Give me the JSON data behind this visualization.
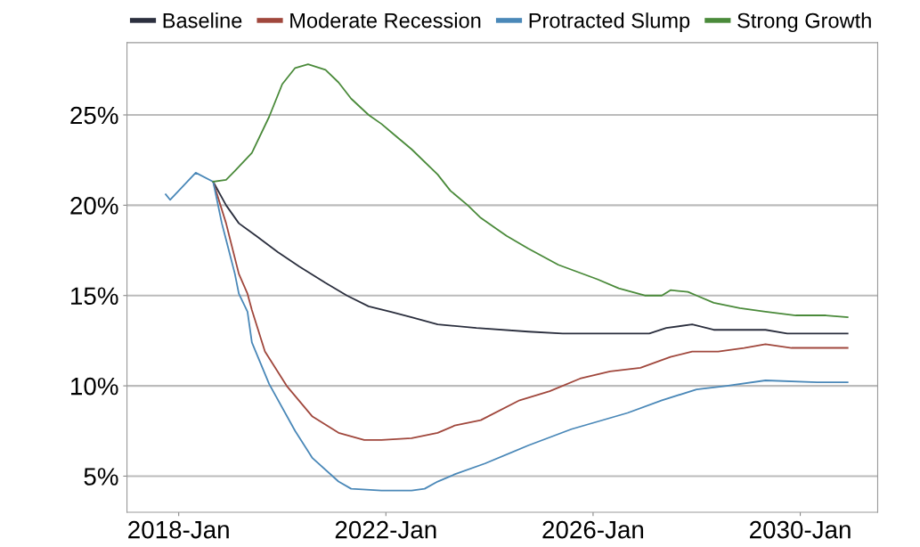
{
  "chart_data": {
    "type": "line",
    "xlim": [
      "2017-01",
      "2031-07"
    ],
    "xticks": [
      {
        "value": "2018-01",
        "label": "2018-Jan"
      },
      {
        "value": "2022-01",
        "label": "2022-Jan"
      },
      {
        "value": "2026-01",
        "label": "2026-Jan"
      },
      {
        "value": "2030-01",
        "label": "2030-Jan"
      }
    ],
    "ylim": [
      3,
      29
    ],
    "yticks": [
      {
        "value": 5,
        "label": "5%"
      },
      {
        "value": 10,
        "label": "10%"
      },
      {
        "value": 15,
        "label": "15%"
      },
      {
        "value": 20,
        "label": "20%"
      },
      {
        "value": 25,
        "label": "25%"
      }
    ],
    "grid": "y",
    "legend": "top",
    "marker": "none",
    "line_style": "solid",
    "series": [
      {
        "name": "Baseline",
        "color": "#2b2f3e",
        "x": [
          "2018-09",
          "2018-12",
          "2019-03",
          "2019-07",
          "2019-12",
          "2020-05",
          "2020-11",
          "2021-04",
          "2021-09",
          "2022-02",
          "2022-07",
          "2023-01",
          "2023-10",
          "2024-10",
          "2025-06",
          "2026-08",
          "2027-02",
          "2027-06",
          "2027-12",
          "2028-05",
          "2029-05",
          "2029-10",
          "2030-12"
        ],
        "values": [
          21.3,
          20.0,
          19.0,
          18.3,
          17.4,
          16.6,
          15.7,
          15.0,
          14.4,
          14.1,
          13.8,
          13.4,
          13.2,
          13.0,
          12.9,
          12.9,
          12.9,
          13.2,
          13.4,
          13.1,
          13.1,
          12.9,
          12.9
        ]
      },
      {
        "name": "Moderate Recession",
        "color": "#a0473c",
        "x": [
          "2018-09",
          "2018-12",
          "2019-03",
          "2019-05",
          "2019-06",
          "2019-09",
          "2020-02",
          "2020-08",
          "2021-02",
          "2021-08",
          "2021-12",
          "2022-07",
          "2023-01",
          "2023-05",
          "2023-11",
          "2024-08",
          "2025-03",
          "2025-10",
          "2026-05",
          "2026-12",
          "2027-07",
          "2027-12",
          "2028-06",
          "2028-12",
          "2029-05",
          "2029-11",
          "2030-12"
        ],
        "values": [
          21.3,
          19.0,
          16.2,
          15.1,
          14.2,
          11.9,
          10.0,
          8.3,
          7.4,
          7.0,
          7.0,
          7.1,
          7.4,
          7.8,
          8.1,
          9.2,
          9.7,
          10.4,
          10.8,
          11.0,
          11.6,
          11.9,
          11.9,
          12.1,
          12.3,
          12.1,
          12.1
        ]
      },
      {
        "name": "Protracted Slump",
        "color": "#4a88b8",
        "x": [
          "2017-10",
          "2017-11",
          "2018-05",
          "2018-09",
          "2018-11",
          "2019-02",
          "2019-03",
          "2019-05",
          "2019-06",
          "2019-10",
          "2020-04",
          "2020-08",
          "2021-02",
          "2021-05",
          "2021-12",
          "2022-07",
          "2022-10",
          "2023-01",
          "2023-05",
          "2023-12",
          "2024-10",
          "2025-08",
          "2026-09",
          "2027-05",
          "2028-01",
          "2028-08",
          "2029-05",
          "2030-05",
          "2030-12"
        ],
        "values": [
          20.6,
          20.3,
          21.8,
          21.3,
          19.0,
          16.2,
          15.1,
          14.1,
          12.4,
          10.1,
          7.5,
          6.0,
          4.7,
          4.3,
          4.2,
          4.2,
          4.3,
          4.7,
          5.1,
          5.7,
          6.7,
          7.6,
          8.5,
          9.2,
          9.8,
          10.0,
          10.3,
          10.2,
          10.2
        ]
      },
      {
        "name": "Strong Growth",
        "color": "#4a8a3a",
        "x": [
          "2018-09",
          "2018-12",
          "2019-02",
          "2019-06",
          "2019-10",
          "2020-01",
          "2020-04",
          "2020-07",
          "2020-11",
          "2021-02",
          "2021-05",
          "2021-09",
          "2021-12",
          "2022-03",
          "2022-07",
          "2023-01",
          "2023-04",
          "2023-08",
          "2023-11",
          "2024-05",
          "2024-10",
          "2025-05",
          "2026-02",
          "2026-07",
          "2027-01",
          "2027-05",
          "2027-07",
          "2027-11",
          "2028-01",
          "2028-05",
          "2028-11",
          "2029-05",
          "2029-12",
          "2030-07",
          "2030-12"
        ],
        "values": [
          21.3,
          21.4,
          21.9,
          22.9,
          24.9,
          26.7,
          27.6,
          27.8,
          27.5,
          26.8,
          25.9,
          25.0,
          24.5,
          23.9,
          23.1,
          21.7,
          20.8,
          20.0,
          19.3,
          18.3,
          17.6,
          16.7,
          15.9,
          15.4,
          15.0,
          15.0,
          15.3,
          15.2,
          15.0,
          14.6,
          14.3,
          14.1,
          13.9,
          13.9,
          13.8
        ]
      }
    ]
  }
}
